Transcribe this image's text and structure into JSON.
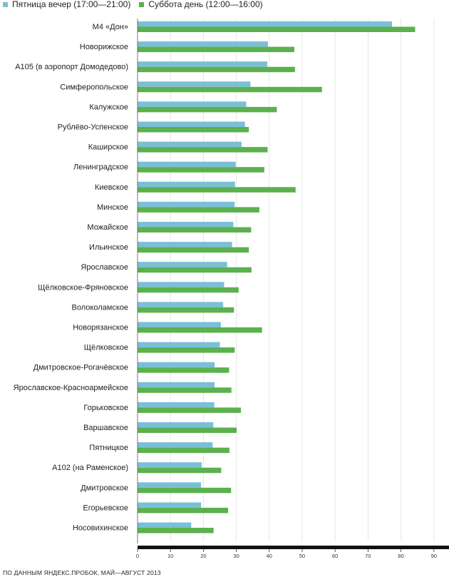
{
  "legend": {
    "series_a": "Пятница вечер (17:00—21:00)",
    "series_b": "Суббота день (12:00—16:00)"
  },
  "source": "ПО ДАННЫМ ЯНДЕКС.ПРОБОК, МАЙ—АВГУСТ 2013",
  "colors": {
    "series_a": "#7bbfd6",
    "series_b": "#5bb14d",
    "axis": "#111111",
    "grid": "#e6e6e6"
  },
  "chart_data": {
    "type": "bar",
    "orientation": "horizontal",
    "categories": [
      "М4 «Дон»",
      "Новорижское",
      "А105 (в аэропорт Домодедово)",
      "Симферопольское",
      "Калужское",
      "Рублёво-Успенское",
      "Каширское",
      "Ленинградское",
      "Киевское",
      "Минское",
      "Можайское",
      "Ильинское",
      "Ярославское",
      "Щёлковское-Фряновское",
      "Волоколамское",
      "Новорязанское",
      "Щёлковское",
      "Дмитровское-Рогачёвское",
      "Ярославское-Красноармейское",
      "Горьковское",
      "Варшавское",
      "Пятницкое",
      "А102 (на Раменское)",
      "Дмитровское",
      "Егорьевское",
      "Носовихинское"
    ],
    "series": [
      {
        "name": "Пятница вечер (17:00—21:00)",
        "values": [
          77.3,
          39.6,
          39.4,
          34.3,
          33.0,
          32.6,
          31.6,
          29.8,
          29.6,
          29.5,
          29.1,
          28.7,
          27.2,
          26.3,
          26.0,
          25.3,
          25.0,
          23.4,
          23.4,
          23.3,
          23.0,
          22.8,
          19.5,
          19.3,
          19.3,
          16.3
        ]
      },
      {
        "name": "Суббота день (12:00—16:00)",
        "values": [
          84.3,
          47.6,
          47.8,
          56.0,
          42.3,
          33.8,
          39.5,
          38.5,
          48.0,
          37.0,
          34.5,
          33.8,
          34.6,
          30.7,
          29.3,
          37.8,
          29.5,
          27.8,
          28.5,
          31.4,
          30.1,
          27.9,
          25.4,
          28.4,
          27.5,
          23.1
        ]
      }
    ],
    "xlim": [
      0,
      94
    ],
    "x_ticks": [
      0,
      10,
      20,
      30,
      40,
      50,
      60,
      70,
      80,
      90
    ],
    "grid": true,
    "legend_position": "top-left"
  }
}
